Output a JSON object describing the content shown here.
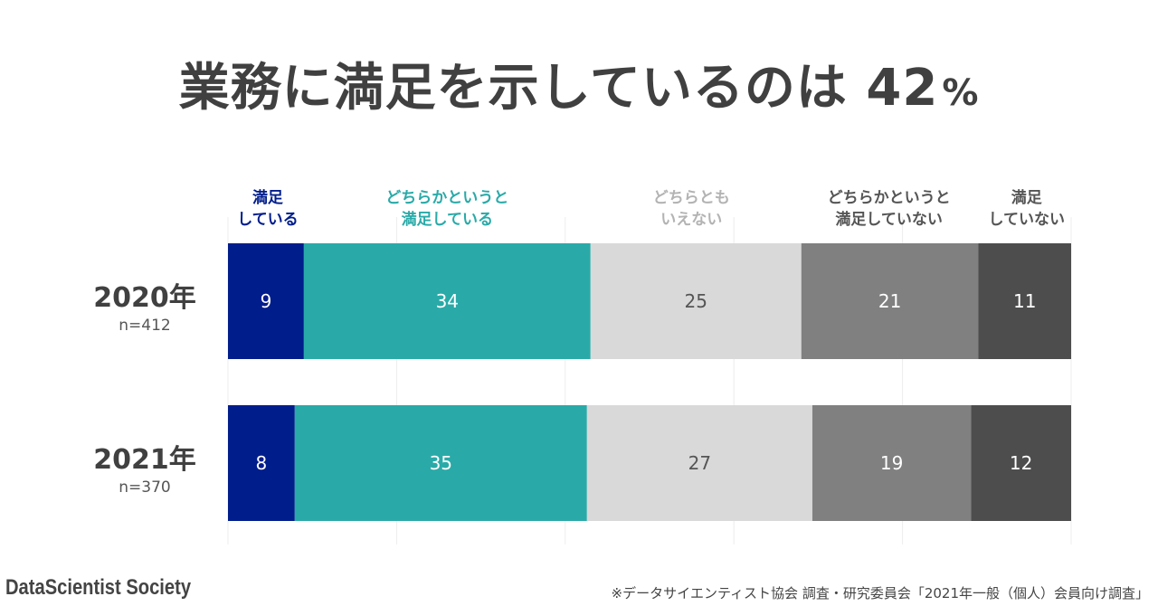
{
  "header": {
    "title_text": "業務に満足を示しているのは",
    "title_value": "42",
    "title_unit": "%"
  },
  "colors": {
    "satisfied": "#001d8c",
    "somewhat_satisfied": "#29aaa8",
    "neutral": "#d9d9d9",
    "somewhat_dissatisfied": "#808080",
    "dissatisfied": "#4d4d4d",
    "neutral_label": "#b3b3b3",
    "dark_label": "#555555"
  },
  "chart_data": {
    "type": "bar",
    "orientation": "horizontal",
    "stacked": "100%",
    "categories": [
      {
        "label": "2020年",
        "sub": "n=412"
      },
      {
        "label": "2021年",
        "sub": "n=370"
      }
    ],
    "series": [
      {
        "name": "満足\nしている",
        "values": [
          9,
          8
        ]
      },
      {
        "name": "どちらかというと\n満足している",
        "values": [
          34,
          35
        ]
      },
      {
        "name": "どちらとも\nいえない",
        "values": [
          25,
          27
        ]
      },
      {
        "name": "どちらかというと\n満足していない",
        "values": [
          21,
          19
        ]
      },
      {
        "name": "満足\nしていない",
        "values": [
          11,
          12
        ]
      }
    ],
    "xlim": [
      0,
      100
    ],
    "grid": true,
    "legend": "top"
  },
  "footer": {
    "brand": "DataScientist Society",
    "note": "※データサイエンティスト協会 調査・研究委員会「2021年一般（個人）会員向け調査」"
  }
}
